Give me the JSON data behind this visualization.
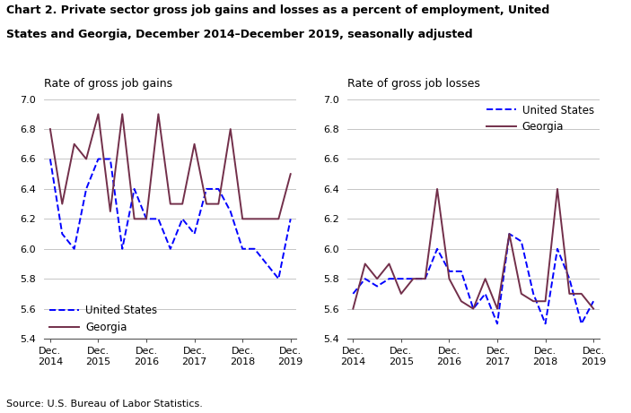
{
  "title_line1": "Chart 2. Private sector gross job gains and losses as a percent of employment, United",
  "title_line2": "States and Georgia, December 2014–December 2019, seasonally adjusted",
  "left_subtitle": "Rate of gross job gains",
  "right_subtitle": "Rate of gross job losses",
  "source": "Source: U.S. Bureau of Labor Statistics.",
  "x_labels": [
    "Dec.\n2014",
    "Dec.\n2015",
    "Dec.\n2016",
    "Dec.\n2017",
    "Dec.\n2018",
    "Dec.\n2019"
  ],
  "x_ticks": [
    0,
    4,
    8,
    12,
    16,
    20
  ],
  "ylim": [
    5.4,
    7.0
  ],
  "yticks": [
    5.4,
    5.6,
    5.8,
    6.0,
    6.2,
    6.4,
    6.6,
    6.8,
    7.0
  ],
  "gains_us": [
    6.6,
    6.1,
    6.0,
    6.4,
    6.6,
    6.6,
    6.0,
    6.4,
    6.2,
    6.2,
    6.0,
    6.2,
    6.1,
    6.4,
    6.4,
    6.25,
    6.0,
    6.0,
    5.9,
    5.8,
    6.2
  ],
  "gains_ga": [
    6.8,
    6.3,
    6.7,
    6.6,
    6.9,
    6.25,
    6.9,
    6.2,
    6.2,
    6.9,
    6.3,
    6.3,
    6.7,
    6.3,
    6.3,
    6.8,
    6.2,
    6.2,
    6.2,
    6.2,
    6.5
  ],
  "losses_us": [
    5.7,
    5.8,
    5.75,
    5.8,
    5.8,
    5.8,
    5.8,
    6.0,
    5.85,
    5.85,
    5.6,
    5.7,
    5.5,
    6.1,
    6.05,
    5.7,
    5.5,
    6.0,
    5.8,
    5.5,
    5.65
  ],
  "losses_ga": [
    5.6,
    5.9,
    5.8,
    5.9,
    5.7,
    5.8,
    5.8,
    6.4,
    5.8,
    5.65,
    5.6,
    5.8,
    5.6,
    6.1,
    5.7,
    5.65,
    5.65,
    6.4,
    5.7,
    5.7,
    5.6
  ],
  "us_color": "#0000FF",
  "ga_color": "#722F4A",
  "us_linestyle": "--",
  "ga_linestyle": "-",
  "linewidth": 1.4,
  "legend_us": "United States",
  "legend_ga": "Georgia",
  "figwidth": 7.03,
  "figheight": 4.61,
  "dpi": 100
}
